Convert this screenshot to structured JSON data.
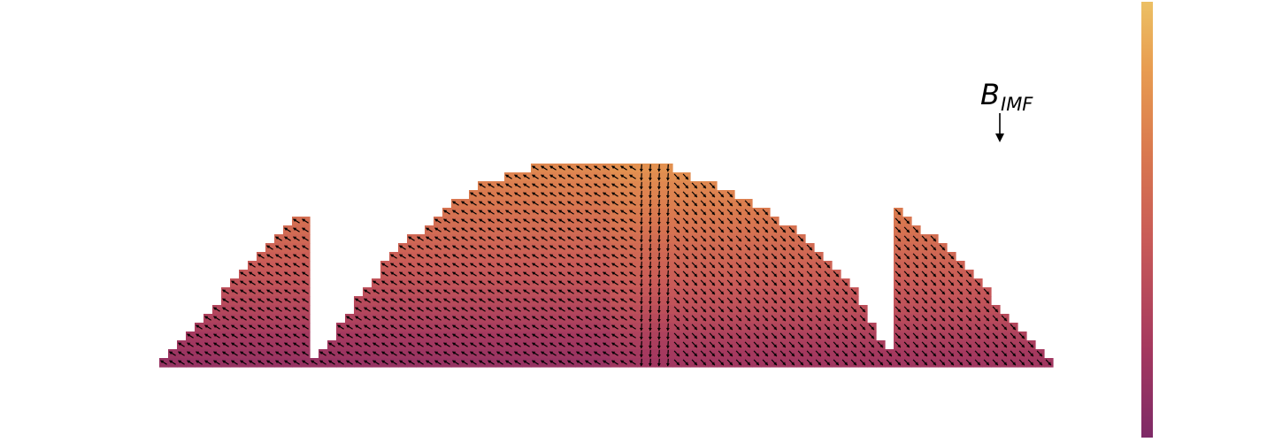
{
  "chart_data": {
    "type": "heatmap",
    "description_kind": "vector field (quiver) over a curved region, color-coded",
    "title": "",
    "xlabel": "",
    "ylabel": "",
    "annotation": {
      "label_main": "B",
      "label_sub": "IMF",
      "arrow_direction": "down"
    },
    "colormap": {
      "name": "flare",
      "stops": [
        "#7e2a67",
        "#a4385f",
        "#c85a58",
        "#d9784f",
        "#e89d51",
        "#ecc064"
      ]
    },
    "colorbar": {
      "orientation": "vertical",
      "ticks_shown": false
    },
    "axes_visible": false,
    "grid": false
  }
}
